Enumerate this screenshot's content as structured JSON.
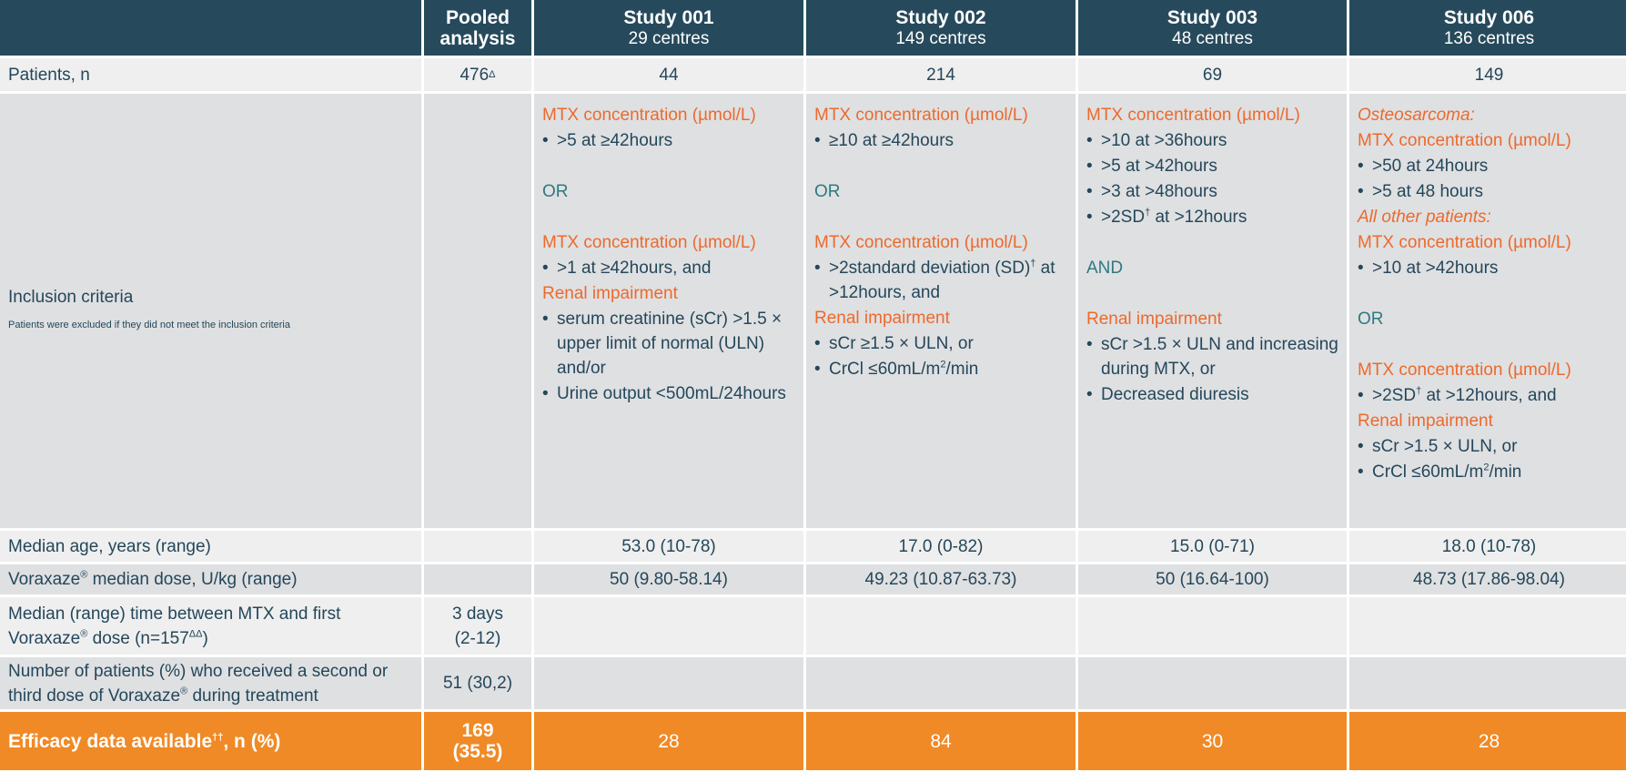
{
  "colors": {
    "header": "#264a5c",
    "text": "#24475a",
    "accent_orange": "#ec6a2c",
    "connector_teal": "#2e7a80",
    "row_light": "#efefef",
    "row_gray": "#dfe0e2",
    "efficacy_row": "#f08a26"
  },
  "header": {
    "pooled": "Pooled analysis",
    "studies": [
      {
        "name": "Study 001",
        "centres": "29 centres"
      },
      {
        "name": "Study 002",
        "centres": "149 centres"
      },
      {
        "name": "Study 003",
        "centres": "48 centres"
      },
      {
        "name": "Study 006",
        "centres": "136 centres"
      }
    ]
  },
  "rows": {
    "patients": {
      "label": "Patients, n",
      "pooled": "476",
      "pooled_sup": "Δ",
      "values": [
        "44",
        "214",
        "69",
        "149"
      ]
    },
    "inclusion": {
      "label": "Inclusion criteria",
      "note": "Patients were excluded if they did not meet the inclusion criteria",
      "studies": [
        [
          {
            "t": "h",
            "text": "MTX concentration (µmol/L)"
          },
          {
            "t": "bl",
            "text": ">5 at ≥42hours"
          },
          {
            "t": "gap"
          },
          {
            "t": "cn",
            "text": "OR"
          },
          {
            "t": "gap"
          },
          {
            "t": "h",
            "text": "MTX concentration (µmol/L)"
          },
          {
            "t": "bl",
            "text": ">1 at ≥42hours, and"
          },
          {
            "t": "h",
            "text": "Renal impairment"
          },
          {
            "t": "bl",
            "text": "serum creatinine (sCr) >1.5 × upper limit of normal (ULN) and/or"
          },
          {
            "t": "bl",
            "text": "Urine output <500mL/24hours"
          }
        ],
        [
          {
            "t": "h",
            "text": "MTX concentration (µmol/L)"
          },
          {
            "t": "bl",
            "text": "≥10 at ≥42hours"
          },
          {
            "t": "gap"
          },
          {
            "t": "cn",
            "text": "OR"
          },
          {
            "t": "gap"
          },
          {
            "t": "h",
            "text": "MTX concentration (µmol/L)"
          },
          {
            "t": "bl",
            "text": ">2standard deviation (SD)",
            "sup": "†",
            "after": " at >12hours, and"
          },
          {
            "t": "h",
            "text": "Renal impairment"
          },
          {
            "t": "bl",
            "text": "sCr ≥1.5 × ULN, or"
          },
          {
            "t": "bl",
            "text": "CrCl ≤60mL/m",
            "sup": "2",
            "after": "/min"
          }
        ],
        [
          {
            "t": "h",
            "text": "MTX concentration (µmol/L)"
          },
          {
            "t": "bl",
            "text": ">10 at >36hours"
          },
          {
            "t": "bl",
            "text": ">5 at >42hours"
          },
          {
            "t": "bl",
            "text": ">3 at >48hours"
          },
          {
            "t": "bl",
            "text": ">2SD",
            "sup": "†",
            "after": " at >12hours"
          },
          {
            "t": "gap"
          },
          {
            "t": "cn",
            "text": "AND"
          },
          {
            "t": "gap"
          },
          {
            "t": "h",
            "text": "Renal impairment"
          },
          {
            "t": "bl",
            "text": "sCr >1.5 × ULN and increasing during MTX, or"
          },
          {
            "t": "bl",
            "text": "Decreased diuresis"
          }
        ],
        [
          {
            "t": "hi",
            "text": "Osteosarcoma:"
          },
          {
            "t": "h",
            "text": "MTX concentration (µmol/L)"
          },
          {
            "t": "bl",
            "text": ">50 at 24hours"
          },
          {
            "t": "bl",
            "text": ">5 at 48 hours"
          },
          {
            "t": "hi",
            "text": "All other patients:"
          },
          {
            "t": "h",
            "text": "MTX concentration (µmol/L)"
          },
          {
            "t": "bl",
            "text": ">10 at >42hours"
          },
          {
            "t": "gap"
          },
          {
            "t": "cn",
            "text": "OR"
          },
          {
            "t": "gap"
          },
          {
            "t": "h",
            "text": "MTX concentration (µmol/L)"
          },
          {
            "t": "bl",
            "text": ">2SD",
            "sup": "†",
            "after": " at >12hours, and"
          },
          {
            "t": "h",
            "text": "Renal impairment"
          },
          {
            "t": "bl",
            "text": "sCr >1.5 × ULN, or"
          },
          {
            "t": "bl",
            "text": "CrCl ≤60mL/m",
            "sup": "2",
            "after": "/min"
          }
        ]
      ]
    },
    "median_age": {
      "label": "Median age, years (range)",
      "pooled": "",
      "values": [
        "53.0 (10-78)",
        "17.0 (0-82)",
        "15.0 (0-71)",
        "18.0 (10-78)"
      ]
    },
    "dose": {
      "label_a": "Voraxaze",
      "label_sup": "®",
      "label_b": " median dose, U/kg (range)",
      "pooled": "",
      "values": [
        "50 (9.80-58.14)",
        "49.23 (10.87-63.73)",
        "50 (16.64-100)",
        "48.73 (17.86-98.04)"
      ]
    },
    "time": {
      "label_a": "Median (range) time between MTX and first Voraxaze",
      "label_sup": "®",
      "label_b": " dose (n=157",
      "label_sup2": "ΔΔ",
      "label_c": ")",
      "pooled": "3 days (2-12)"
    },
    "second_dose": {
      "label_a": "Number of patients (%) who received a second or third dose of Voraxaze",
      "label_sup": "®",
      "label_b": " during treatment",
      "pooled": "51 (30,2)"
    },
    "efficacy": {
      "label_a": "Efficacy data available",
      "label_sup": "††",
      "label_b": ", n (%)",
      "pooled": "169 (35.5)",
      "values": [
        "28",
        "84",
        "30",
        "28"
      ]
    }
  }
}
